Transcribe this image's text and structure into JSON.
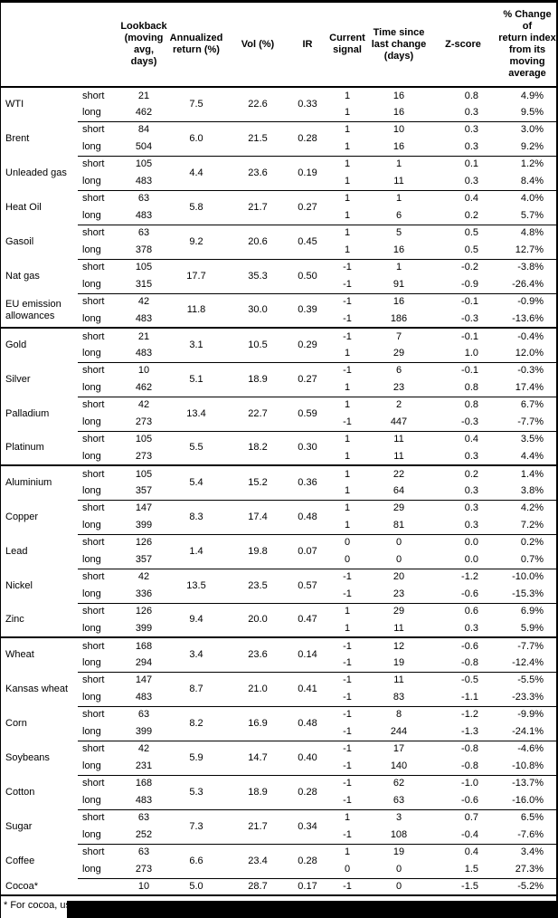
{
  "colors": {
    "text": "#000000",
    "background": "#ffffff",
    "rules": "#000000",
    "redaction_bar": "#000000"
  },
  "table": {
    "headers": [
      {
        "label": ""
      },
      {
        "label": ""
      },
      {
        "label": "Lookback\n(moving\navg, days)"
      },
      {
        "label": "Annualized\nreturn (%)"
      },
      {
        "label": "Vol (%)"
      },
      {
        "label": "IR"
      },
      {
        "label": "Current\nsignal"
      },
      {
        "label": "Time since\nlast change\n(days)"
      },
      {
        "label": "Z-score"
      },
      {
        "label": "% Change of\nreturn index\nfrom its\nmoving\naverage"
      }
    ],
    "groups": [
      {
        "name": "WTI",
        "section_start": false,
        "annualized_return": "7.5",
        "vol": "22.6",
        "ir": "0.33",
        "rows": [
          {
            "label": "short",
            "lookback": "21",
            "signal": "1",
            "time_since_change": "16",
            "z_score": "0.8",
            "pct_change": "4.9%"
          },
          {
            "label": "long",
            "lookback": "462",
            "signal": "1",
            "time_since_change": "16",
            "z_score": "0.3",
            "pct_change": "9.5%"
          }
        ]
      },
      {
        "name": "Brent",
        "section_start": false,
        "annualized_return": "6.0",
        "vol": "21.5",
        "ir": "0.28",
        "rows": [
          {
            "label": "short",
            "lookback": "84",
            "signal": "1",
            "time_since_change": "10",
            "z_score": "0.3",
            "pct_change": "3.0%"
          },
          {
            "label": "long",
            "lookback": "504",
            "signal": "1",
            "time_since_change": "16",
            "z_score": "0.3",
            "pct_change": "9.2%"
          }
        ]
      },
      {
        "name": "Unleaded gas",
        "section_start": false,
        "annualized_return": "4.4",
        "vol": "23.6",
        "ir": "0.19",
        "rows": [
          {
            "label": "short",
            "lookback": "105",
            "signal": "1",
            "time_since_change": "1",
            "z_score": "0.1",
            "pct_change": "1.2%"
          },
          {
            "label": "long",
            "lookback": "483",
            "signal": "1",
            "time_since_change": "11",
            "z_score": "0.3",
            "pct_change": "8.4%"
          }
        ]
      },
      {
        "name": "Heat Oil",
        "section_start": false,
        "annualized_return": "5.8",
        "vol": "21.7",
        "ir": "0.27",
        "rows": [
          {
            "label": "short",
            "lookback": "63",
            "signal": "1",
            "time_since_change": "1",
            "z_score": "0.4",
            "pct_change": "4.0%"
          },
          {
            "label": "long",
            "lookback": "483",
            "signal": "1",
            "time_since_change": "6",
            "z_score": "0.2",
            "pct_change": "5.7%"
          }
        ]
      },
      {
        "name": "Gasoil",
        "section_start": false,
        "annualized_return": "9.2",
        "vol": "20.6",
        "ir": "0.45",
        "rows": [
          {
            "label": "short",
            "lookback": "63",
            "signal": "1",
            "time_since_change": "5",
            "z_score": "0.5",
            "pct_change": "4.8%"
          },
          {
            "label": "long",
            "lookback": "378",
            "signal": "1",
            "time_since_change": "16",
            "z_score": "0.5",
            "pct_change": "12.7%"
          }
        ]
      },
      {
        "name": "Nat gas",
        "section_start": false,
        "annualized_return": "17.7",
        "vol": "35.3",
        "ir": "0.50",
        "rows": [
          {
            "label": "short",
            "lookback": "105",
            "signal": "-1",
            "time_since_change": "1",
            "z_score": "-0.2",
            "pct_change": "-3.8%"
          },
          {
            "label": "long",
            "lookback": "315",
            "signal": "-1",
            "time_since_change": "91",
            "z_score": "-0.9",
            "pct_change": "-26.4%"
          }
        ]
      },
      {
        "name": "EU emission allowances",
        "section_start": false,
        "annualized_return": "11.8",
        "vol": "30.0",
        "ir": "0.39",
        "rows": [
          {
            "label": "short",
            "lookback": "42",
            "signal": "-1",
            "time_since_change": "16",
            "z_score": "-0.1",
            "pct_change": "-0.9%"
          },
          {
            "label": "long",
            "lookback": "483",
            "signal": "-1",
            "time_since_change": "186",
            "z_score": "-0.3",
            "pct_change": "-13.6%"
          }
        ]
      },
      {
        "name": "Gold",
        "section_start": true,
        "annualized_return": "3.1",
        "vol": "10.5",
        "ir": "0.29",
        "rows": [
          {
            "label": "short",
            "lookback": "21",
            "signal": "-1",
            "time_since_change": "7",
            "z_score": "-0.1",
            "pct_change": "-0.4%"
          },
          {
            "label": "long",
            "lookback": "483",
            "signal": "1",
            "time_since_change": "29",
            "z_score": "1.0",
            "pct_change": "12.0%"
          }
        ]
      },
      {
        "name": "Silver",
        "section_start": false,
        "annualized_return": "5.1",
        "vol": "18.9",
        "ir": "0.27",
        "rows": [
          {
            "label": "short",
            "lookback": "10",
            "signal": "-1",
            "time_since_change": "6",
            "z_score": "-0.1",
            "pct_change": "-0.3%"
          },
          {
            "label": "long",
            "lookback": "462",
            "signal": "1",
            "time_since_change": "23",
            "z_score": "0.8",
            "pct_change": "17.4%"
          }
        ]
      },
      {
        "name": "Palladium",
        "section_start": false,
        "annualized_return": "13.4",
        "vol": "22.7",
        "ir": "0.59",
        "rows": [
          {
            "label": "short",
            "lookback": "42",
            "signal": "1",
            "time_since_change": "2",
            "z_score": "0.8",
            "pct_change": "6.7%"
          },
          {
            "label": "long",
            "lookback": "273",
            "signal": "-1",
            "time_since_change": "447",
            "z_score": "-0.3",
            "pct_change": "-7.7%"
          }
        ]
      },
      {
        "name": "Platinum",
        "section_start": false,
        "annualized_return": "5.5",
        "vol": "18.2",
        "ir": "0.30",
        "rows": [
          {
            "label": "short",
            "lookback": "105",
            "signal": "1",
            "time_since_change": "11",
            "z_score": "0.4",
            "pct_change": "3.5%"
          },
          {
            "label": "long",
            "lookback": "273",
            "signal": "1",
            "time_since_change": "11",
            "z_score": "0.3",
            "pct_change": "4.4%"
          }
        ]
      },
      {
        "name": "Aluminium",
        "section_start": true,
        "annualized_return": "5.4",
        "vol": "15.2",
        "ir": "0.36",
        "rows": [
          {
            "label": "short",
            "lookback": "105",
            "signal": "1",
            "time_since_change": "22",
            "z_score": "0.2",
            "pct_change": "1.4%"
          },
          {
            "label": "long",
            "lookback": "357",
            "signal": "1",
            "time_since_change": "64",
            "z_score": "0.3",
            "pct_change": "3.8%"
          }
        ]
      },
      {
        "name": "Copper",
        "section_start": false,
        "annualized_return": "8.3",
        "vol": "17.4",
        "ir": "0.48",
        "rows": [
          {
            "label": "short",
            "lookback": "147",
            "signal": "1",
            "time_since_change": "29",
            "z_score": "0.3",
            "pct_change": "4.2%"
          },
          {
            "label": "long",
            "lookback": "399",
            "signal": "1",
            "time_since_change": "81",
            "z_score": "0.3",
            "pct_change": "7.2%"
          }
        ]
      },
      {
        "name": "Lead",
        "section_start": false,
        "annualized_return": "1.4",
        "vol": "19.8",
        "ir": "0.07",
        "rows": [
          {
            "label": "short",
            "lookback": "126",
            "signal": "0",
            "time_since_change": "0",
            "z_score": "0.0",
            "pct_change": "0.2%"
          },
          {
            "label": "long",
            "lookback": "357",
            "signal": "0",
            "time_since_change": "0",
            "z_score": "0.0",
            "pct_change": "0.7%"
          }
        ]
      },
      {
        "name": "Nickel",
        "section_start": false,
        "annualized_return": "13.5",
        "vol": "23.5",
        "ir": "0.57",
        "rows": [
          {
            "label": "short",
            "lookback": "42",
            "signal": "-1",
            "time_since_change": "20",
            "z_score": "-1.2",
            "pct_change": "-10.0%"
          },
          {
            "label": "long",
            "lookback": "336",
            "signal": "-1",
            "time_since_change": "23",
            "z_score": "-0.6",
            "pct_change": "-15.3%"
          }
        ]
      },
      {
        "name": "Zinc",
        "section_start": false,
        "annualized_return": "9.4",
        "vol": "20.0",
        "ir": "0.47",
        "rows": [
          {
            "label": "short",
            "lookback": "126",
            "signal": "1",
            "time_since_change": "29",
            "z_score": "0.6",
            "pct_change": "6.9%"
          },
          {
            "label": "long",
            "lookback": "399",
            "signal": "1",
            "time_since_change": "11",
            "z_score": "0.3",
            "pct_change": "5.9%"
          }
        ]
      },
      {
        "name": "Wheat",
        "section_start": true,
        "annualized_return": "3.4",
        "vol": "23.6",
        "ir": "0.14",
        "rows": [
          {
            "label": "short",
            "lookback": "168",
            "signal": "-1",
            "time_since_change": "12",
            "z_score": "-0.6",
            "pct_change": "-7.7%"
          },
          {
            "label": "long",
            "lookback": "294",
            "signal": "-1",
            "time_since_change": "19",
            "z_score": "-0.8",
            "pct_change": "-12.4%"
          }
        ]
      },
      {
        "name": "Kansas wheat",
        "section_start": false,
        "annualized_return": "8.7",
        "vol": "21.0",
        "ir": "0.41",
        "rows": [
          {
            "label": "short",
            "lookback": "147",
            "signal": "-1",
            "time_since_change": "11",
            "z_score": "-0.5",
            "pct_change": "-5.5%"
          },
          {
            "label": "long",
            "lookback": "483",
            "signal": "-1",
            "time_since_change": "83",
            "z_score": "-1.1",
            "pct_change": "-23.3%"
          }
        ]
      },
      {
        "name": "Corn",
        "section_start": false,
        "annualized_return": "8.2",
        "vol": "16.9",
        "ir": "0.48",
        "rows": [
          {
            "label": "short",
            "lookback": "63",
            "signal": "-1",
            "time_since_change": "8",
            "z_score": "-1.2",
            "pct_change": "-9.9%"
          },
          {
            "label": "long",
            "lookback": "399",
            "signal": "-1",
            "time_since_change": "244",
            "z_score": "-1.3",
            "pct_change": "-24.1%"
          }
        ]
      },
      {
        "name": "Soybeans",
        "section_start": false,
        "annualized_return": "5.9",
        "vol": "14.7",
        "ir": "0.40",
        "rows": [
          {
            "label": "short",
            "lookback": "42",
            "signal": "-1",
            "time_since_change": "17",
            "z_score": "-0.8",
            "pct_change": "-4.6%"
          },
          {
            "label": "long",
            "lookback": "231",
            "signal": "-1",
            "time_since_change": "140",
            "z_score": "-0.8",
            "pct_change": "-10.8%"
          }
        ]
      },
      {
        "name": "Cotton",
        "section_start": false,
        "annualized_return": "5.3",
        "vol": "18.9",
        "ir": "0.28",
        "rows": [
          {
            "label": "short",
            "lookback": "168",
            "signal": "-1",
            "time_since_change": "62",
            "z_score": "-1.0",
            "pct_change": "-13.7%"
          },
          {
            "label": "long",
            "lookback": "483",
            "signal": "-1",
            "time_since_change": "63",
            "z_score": "-0.6",
            "pct_change": "-16.0%"
          }
        ]
      },
      {
        "name": "Sugar",
        "section_start": false,
        "annualized_return": "7.3",
        "vol": "21.7",
        "ir": "0.34",
        "rows": [
          {
            "label": "short",
            "lookback": "63",
            "signal": "1",
            "time_since_change": "3",
            "z_score": "0.7",
            "pct_change": "6.5%"
          },
          {
            "label": "long",
            "lookback": "252",
            "signal": "-1",
            "time_since_change": "108",
            "z_score": "-0.4",
            "pct_change": "-7.6%"
          }
        ]
      },
      {
        "name": "Coffee",
        "section_start": false,
        "annualized_return": "6.6",
        "vol": "23.4",
        "ir": "0.28",
        "rows": [
          {
            "label": "short",
            "lookback": "63",
            "signal": "1",
            "time_since_change": "19",
            "z_score": "0.4",
            "pct_change": "3.4%"
          },
          {
            "label": "long",
            "lookback": "273",
            "signal": "0",
            "time_since_change": "0",
            "z_score": "1.5",
            "pct_change": "27.3%"
          }
        ]
      },
      {
        "name": "Cocoa*",
        "section_start": false,
        "annualized_return": "5.0",
        "vol": "28.7",
        "ir": "0.17",
        "rows": [
          {
            "label": "",
            "lookback": "10",
            "signal": "-1",
            "time_since_change": "0",
            "z_score": "-1.5",
            "pct_change": "-5.2%"
          }
        ]
      }
    ]
  },
  "footnote": {
    "visible_text": "* For cocoa, uses o",
    "redacted": true
  }
}
